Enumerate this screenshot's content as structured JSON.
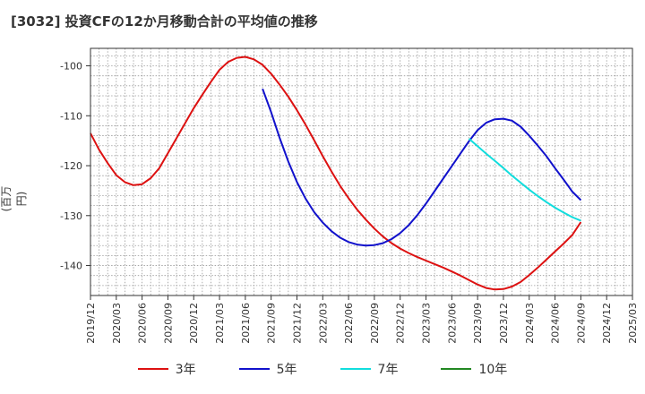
{
  "title": "[3032]  投資CFの12か月移動合計の平均値の推移",
  "chart_data": {
    "type": "line",
    "ylabel": "(百万円)",
    "ylim": [
      -146,
      -96.5
    ],
    "yticks": [
      -100,
      -110,
      -120,
      -130,
      -140
    ],
    "xticks": [
      "2019/12",
      "2020/03",
      "2020/06",
      "2020/09",
      "2020/12",
      "2021/03",
      "2021/06",
      "2021/09",
      "2021/12",
      "2022/03",
      "2022/06",
      "2022/09",
      "2022/12",
      "2023/03",
      "2023/06",
      "2023/09",
      "2023/12",
      "2024/03",
      "2024/06",
      "2024/09",
      "2024/12",
      "2025/03"
    ],
    "grid": true,
    "legend_position": "bottom",
    "series": [
      {
        "name": "3年",
        "color": "#dd1111",
        "points": [
          [
            "2019/12",
            -113.5
          ],
          [
            "2020/01",
            -116.8
          ],
          [
            "2020/02",
            -119.5
          ],
          [
            "2020/03",
            -121.9
          ],
          [
            "2020/04",
            -123.3
          ],
          [
            "2020/05",
            -123.9
          ],
          [
            "2020/06",
            -123.7
          ],
          [
            "2020/07",
            -122.5
          ],
          [
            "2020/08",
            -120.5
          ],
          [
            "2020/09",
            -117.5
          ],
          [
            "2020/10",
            -114.5
          ],
          [
            "2020/11",
            -111.5
          ],
          [
            "2020/12",
            -108.5
          ],
          [
            "2021/01",
            -105.8
          ],
          [
            "2021/02",
            -103.2
          ],
          [
            "2021/03",
            -100.8
          ],
          [
            "2021/04",
            -99.2
          ],
          [
            "2021/05",
            -98.4
          ],
          [
            "2021/06",
            -98.2
          ],
          [
            "2021/07",
            -98.7
          ],
          [
            "2021/08",
            -99.8
          ],
          [
            "2021/09",
            -101.6
          ],
          [
            "2021/10",
            -103.8
          ],
          [
            "2021/11",
            -106.2
          ],
          [
            "2021/12",
            -108.9
          ],
          [
            "2022/01",
            -111.8
          ],
          [
            "2022/02",
            -114.9
          ],
          [
            "2022/03",
            -118.1
          ],
          [
            "2022/04",
            -121.1
          ],
          [
            "2022/05",
            -124.0
          ],
          [
            "2022/06",
            -126.5
          ],
          [
            "2022/07",
            -128.8
          ],
          [
            "2022/08",
            -130.8
          ],
          [
            "2022/09",
            -132.6
          ],
          [
            "2022/10",
            -134.2
          ],
          [
            "2022/11",
            -135.5
          ],
          [
            "2022/12",
            -136.6
          ],
          [
            "2023/01",
            -137.5
          ],
          [
            "2023/02",
            -138.3
          ],
          [
            "2023/03",
            -139.0
          ],
          [
            "2023/04",
            -139.7
          ],
          [
            "2023/05",
            -140.4
          ],
          [
            "2023/06",
            -141.2
          ],
          [
            "2023/07",
            -142.0
          ],
          [
            "2023/08",
            -142.9
          ],
          [
            "2023/09",
            -143.8
          ],
          [
            "2023/10",
            -144.5
          ],
          [
            "2023/11",
            -144.8
          ],
          [
            "2023/12",
            -144.7
          ],
          [
            "2024/01",
            -144.2
          ],
          [
            "2024/02",
            -143.3
          ],
          [
            "2024/03",
            -141.9
          ],
          [
            "2024/04",
            -140.4
          ],
          [
            "2024/05",
            -138.8
          ],
          [
            "2024/06",
            -137.2
          ],
          [
            "2024/07",
            -135.6
          ],
          [
            "2024/08",
            -133.9
          ],
          [
            "2024/09",
            -131.3
          ]
        ]
      },
      {
        "name": "5年",
        "color": "#1111cc",
        "points": [
          [
            "2021/08",
            -104.6
          ],
          [
            "2021/09",
            -109.3
          ],
          [
            "2021/10",
            -114.5
          ],
          [
            "2021/11",
            -119.2
          ],
          [
            "2021/12",
            -123.3
          ],
          [
            "2022/01",
            -126.6
          ],
          [
            "2022/02",
            -129.3
          ],
          [
            "2022/03",
            -131.4
          ],
          [
            "2022/04",
            -133.1
          ],
          [
            "2022/05",
            -134.4
          ],
          [
            "2022/06",
            -135.3
          ],
          [
            "2022/07",
            -135.8
          ],
          [
            "2022/08",
            -136.0
          ],
          [
            "2022/09",
            -135.9
          ],
          [
            "2022/10",
            -135.5
          ],
          [
            "2022/11",
            -134.7
          ],
          [
            "2022/12",
            -133.5
          ],
          [
            "2023/01",
            -131.9
          ],
          [
            "2023/02",
            -129.9
          ],
          [
            "2023/03",
            -127.6
          ],
          [
            "2023/04",
            -125.1
          ],
          [
            "2023/05",
            -122.6
          ],
          [
            "2023/06",
            -120.1
          ],
          [
            "2023/07",
            -117.6
          ],
          [
            "2023/08",
            -115.1
          ],
          [
            "2023/09",
            -112.9
          ],
          [
            "2023/10",
            -111.4
          ],
          [
            "2023/11",
            -110.7
          ],
          [
            "2023/12",
            -110.6
          ],
          [
            "2024/01",
            -111.0
          ],
          [
            "2024/02",
            -112.2
          ],
          [
            "2024/03",
            -114.0
          ],
          [
            "2024/04",
            -116.0
          ],
          [
            "2024/05",
            -118.1
          ],
          [
            "2024/06",
            -120.5
          ],
          [
            "2024/07",
            -122.8
          ],
          [
            "2024/08",
            -125.2
          ],
          [
            "2024/09",
            -126.9
          ]
        ]
      },
      {
        "name": "7年",
        "color": "#11dddd",
        "points": [
          [
            "2023/08",
            -114.6
          ],
          [
            "2023/09",
            -116.1
          ],
          [
            "2023/10",
            -117.6
          ],
          [
            "2023/11",
            -119.0
          ],
          [
            "2023/12",
            -120.5
          ],
          [
            "2024/01",
            -122.0
          ],
          [
            "2024/02",
            -123.4
          ],
          [
            "2024/03",
            -124.8
          ],
          [
            "2024/04",
            -126.1
          ],
          [
            "2024/05",
            -127.3
          ],
          [
            "2024/06",
            -128.4
          ],
          [
            "2024/07",
            -129.4
          ],
          [
            "2024/08",
            -130.3
          ],
          [
            "2024/09",
            -131.0
          ]
        ]
      },
      {
        "name": "10年",
        "color": "#228822",
        "points": []
      }
    ]
  }
}
